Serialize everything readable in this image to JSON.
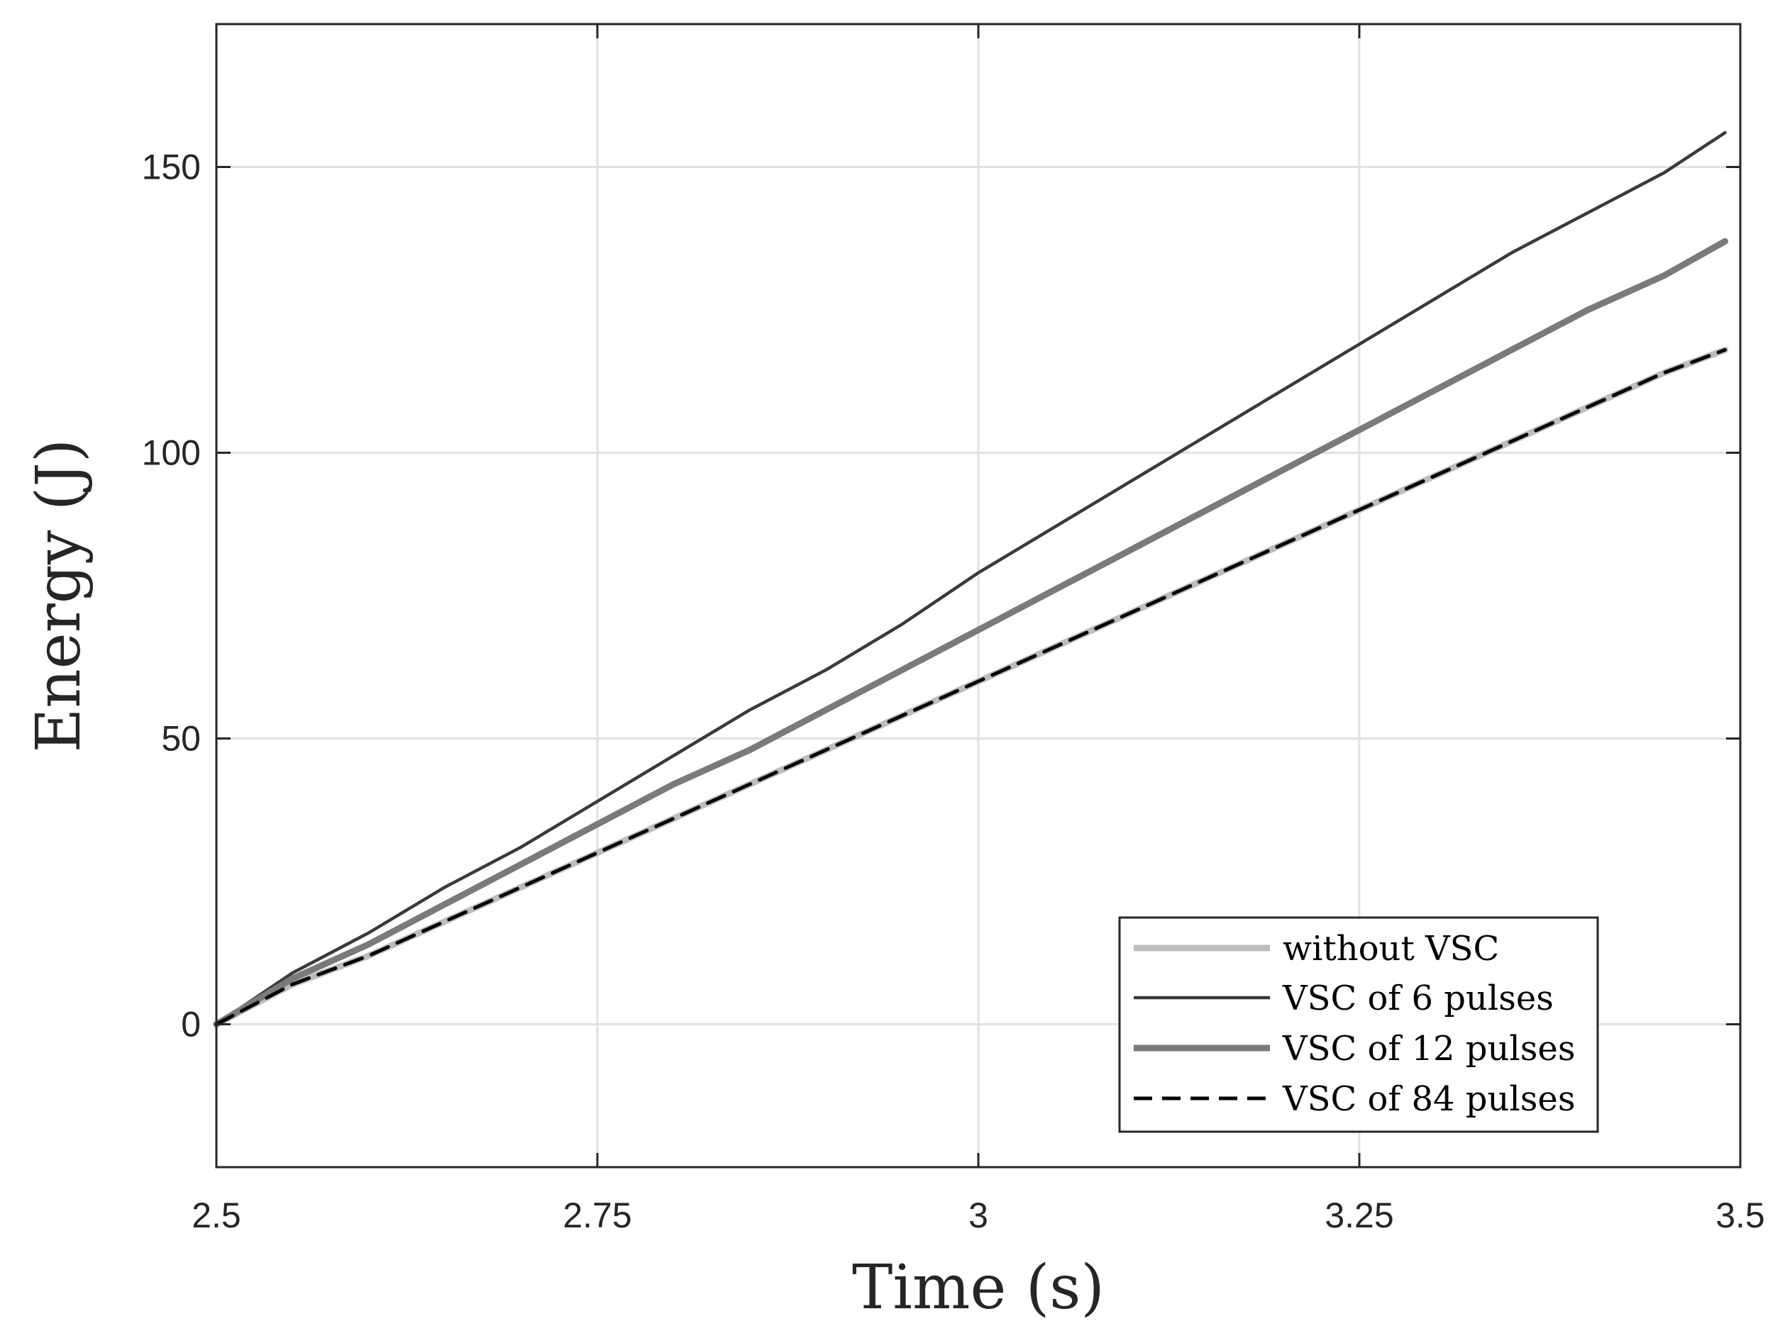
{
  "chart_data": {
    "type": "line",
    "xlabel": "Time (s)",
    "ylabel": "Energy (J)",
    "xlim": [
      2.5,
      3.5
    ],
    "ylim": [
      -25,
      175
    ],
    "grid": true,
    "xticks": [
      2.5,
      2.75,
      3,
      3.25,
      3.5
    ],
    "xtick_labels": [
      "2.5",
      "2.75",
      "3",
      "3.25",
      "3.5"
    ],
    "yticks": [
      0,
      50,
      100,
      150
    ],
    "ytick_labels": [
      "0",
      "50",
      "100",
      "150"
    ],
    "legend_position": "bottom-right",
    "series": [
      {
        "name": "without VSC",
        "color": "#bdbdbd",
        "style": "solid-thick",
        "x": [
          2.5,
          2.55,
          2.6,
          2.65,
          2.7,
          2.75,
          2.8,
          2.85,
          2.9,
          2.95,
          3.0,
          3.05,
          3.1,
          3.15,
          3.2,
          3.25,
          3.3,
          3.35,
          3.4,
          3.45,
          3.49
        ],
        "y": [
          0,
          7,
          12,
          18,
          24,
          30,
          36,
          42,
          48,
          54,
          60,
          66,
          72,
          78,
          84,
          90,
          96,
          102,
          108,
          114,
          118
        ]
      },
      {
        "name": "VSC of 6 pulses",
        "color": "#3a3a3a",
        "style": "solid-thin",
        "x": [
          2.5,
          2.55,
          2.6,
          2.65,
          2.7,
          2.75,
          2.8,
          2.85,
          2.9,
          2.95,
          3.0,
          3.05,
          3.1,
          3.15,
          3.2,
          3.25,
          3.3,
          3.35,
          3.4,
          3.45,
          3.49
        ],
        "y": [
          0,
          9,
          16,
          24,
          31,
          39,
          47,
          55,
          62,
          70,
          79,
          87,
          95,
          103,
          111,
          119,
          127,
          135,
          142,
          149,
          156
        ]
      },
      {
        "name": "VSC of 12 pulses",
        "color": "#7a7a7a",
        "style": "solid-thick",
        "x": [
          2.5,
          2.55,
          2.6,
          2.65,
          2.7,
          2.75,
          2.8,
          2.85,
          2.9,
          2.95,
          3.0,
          3.05,
          3.1,
          3.15,
          3.2,
          3.25,
          3.3,
          3.35,
          3.4,
          3.45,
          3.49
        ],
        "y": [
          0,
          8,
          14,
          21,
          28,
          35,
          42,
          48,
          55,
          62,
          69,
          76,
          83,
          90,
          97,
          104,
          111,
          118,
          125,
          131,
          137
        ]
      },
      {
        "name": "VSC of 84 pulses",
        "color": "#000000",
        "style": "dashed",
        "x": [
          2.5,
          2.55,
          2.6,
          2.65,
          2.7,
          2.75,
          2.8,
          2.85,
          2.9,
          2.95,
          3.0,
          3.05,
          3.1,
          3.15,
          3.2,
          3.25,
          3.3,
          3.35,
          3.4,
          3.45,
          3.49
        ],
        "y": [
          0,
          7,
          12,
          18,
          24,
          30,
          36,
          42,
          48,
          54,
          60,
          66,
          72,
          78,
          84,
          90,
          96,
          102,
          108,
          114,
          118
        ]
      }
    ]
  }
}
